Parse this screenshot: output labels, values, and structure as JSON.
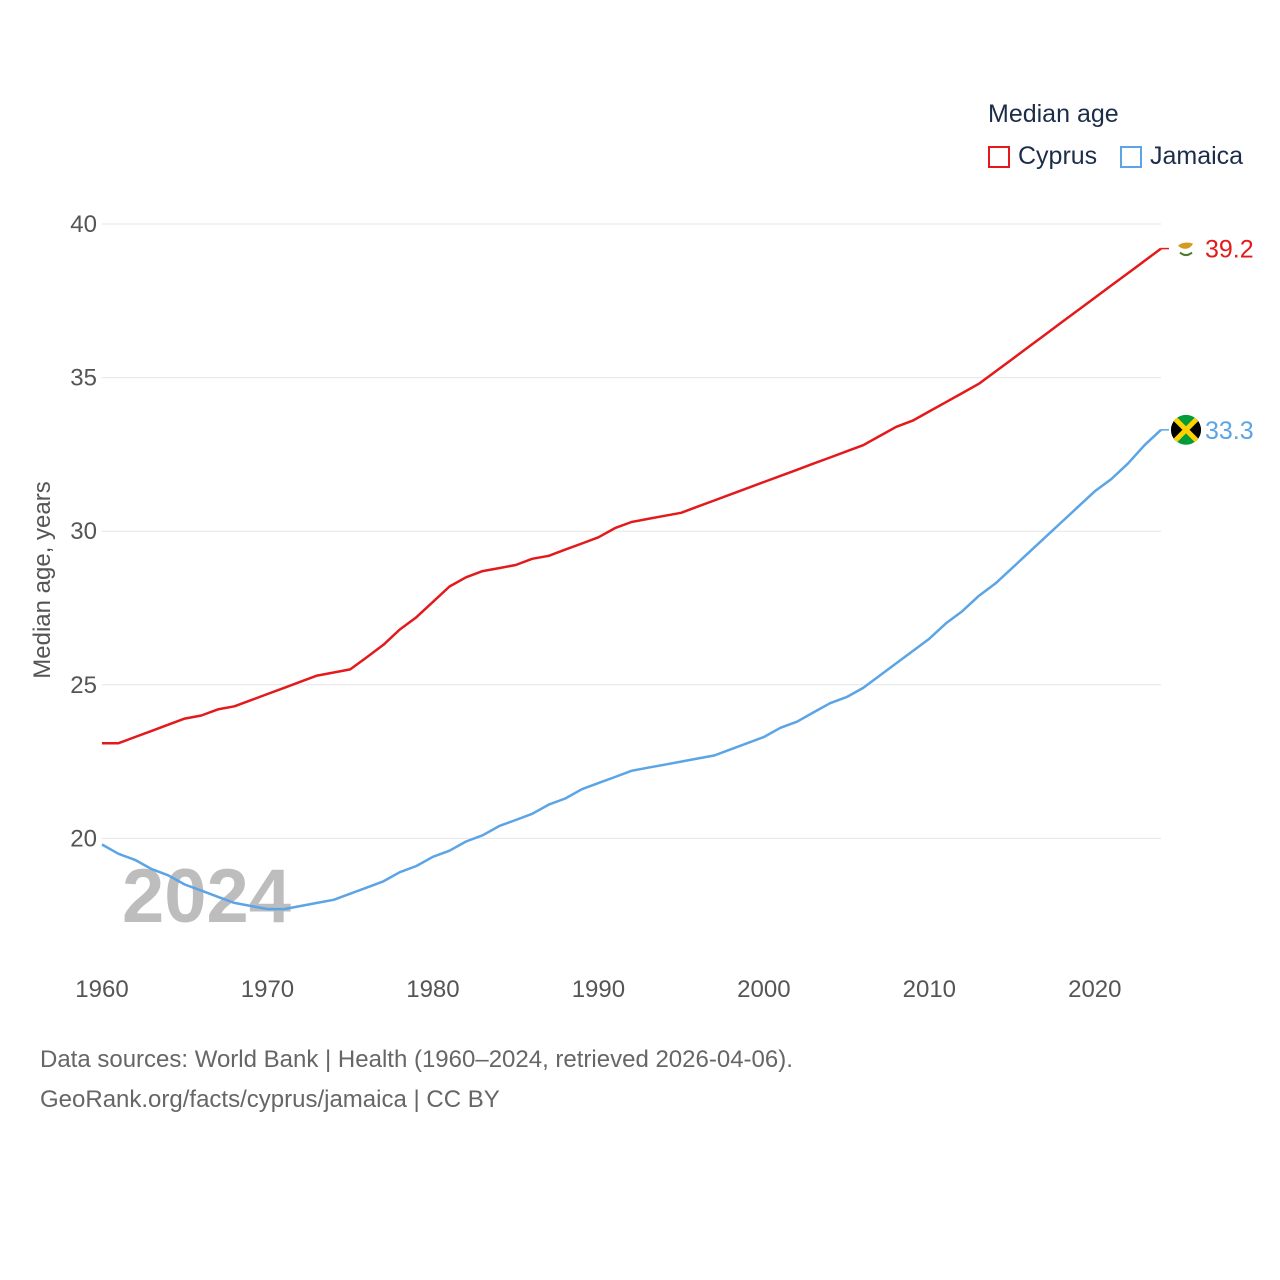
{
  "chart_data": {
    "type": "line",
    "title": "",
    "xlabel": "",
    "ylabel": "Median age, years",
    "xlim": [
      1960,
      2024
    ],
    "ylim": [
      16.1,
      40.7
    ],
    "x_ticks": [
      1960,
      1970,
      1980,
      1990,
      2000,
      2010,
      2020
    ],
    "y_ticks": [
      20,
      25,
      30,
      35,
      40
    ],
    "grid": true,
    "legend_title": "Median age",
    "legend_position": "top-right",
    "watermark_year": "2024",
    "x": [
      1960,
      1961,
      1962,
      1963,
      1964,
      1965,
      1966,
      1967,
      1968,
      1969,
      1970,
      1971,
      1972,
      1973,
      1974,
      1975,
      1976,
      1977,
      1978,
      1979,
      1980,
      1981,
      1982,
      1983,
      1984,
      1985,
      1986,
      1987,
      1988,
      1989,
      1990,
      1991,
      1992,
      1993,
      1994,
      1995,
      1996,
      1997,
      1998,
      1999,
      2000,
      2001,
      2002,
      2003,
      2004,
      2005,
      2006,
      2007,
      2008,
      2009,
      2010,
      2011,
      2012,
      2013,
      2014,
      2015,
      2016,
      2017,
      2018,
      2019,
      2020,
      2021,
      2022,
      2023,
      2024
    ],
    "series": [
      {
        "name": "Cyprus",
        "color": "#e31a1c",
        "end_label": "39.2",
        "values": [
          23.1,
          23.1,
          23.3,
          23.5,
          23.7,
          23.9,
          24.0,
          24.2,
          24.3,
          24.5,
          24.7,
          24.9,
          25.1,
          25.3,
          25.4,
          25.5,
          25.9,
          26.3,
          26.8,
          27.2,
          27.7,
          28.2,
          28.5,
          28.7,
          28.8,
          28.9,
          29.1,
          29.2,
          29.4,
          29.6,
          29.8,
          30.1,
          30.3,
          30.4,
          30.5,
          30.6,
          30.8,
          31.0,
          31.2,
          31.4,
          31.6,
          31.8,
          32.0,
          32.2,
          32.4,
          32.6,
          32.8,
          33.1,
          33.4,
          33.6,
          33.9,
          34.2,
          34.5,
          34.8,
          35.2,
          35.6,
          36.0,
          36.4,
          36.8,
          37.2,
          37.6,
          38.0,
          38.4,
          38.8,
          39.2
        ]
      },
      {
        "name": "Jamaica",
        "color": "#5ba4e6",
        "end_label": "33.3",
        "values": [
          19.8,
          19.5,
          19.3,
          19.0,
          18.8,
          18.5,
          18.3,
          18.1,
          17.9,
          17.8,
          17.7,
          17.7,
          17.8,
          17.9,
          18.0,
          18.2,
          18.4,
          18.6,
          18.9,
          19.1,
          19.4,
          19.6,
          19.9,
          20.1,
          20.4,
          20.6,
          20.8,
          21.1,
          21.3,
          21.6,
          21.8,
          22.0,
          22.2,
          22.3,
          22.4,
          22.5,
          22.6,
          22.7,
          22.9,
          23.1,
          23.3,
          23.6,
          23.8,
          24.1,
          24.4,
          24.6,
          24.9,
          25.3,
          25.7,
          26.1,
          26.5,
          27.0,
          27.4,
          27.9,
          28.3,
          28.8,
          29.3,
          29.8,
          30.3,
          30.8,
          31.3,
          31.7,
          32.2,
          32.8,
          33.3
        ]
      }
    ]
  },
  "legend": {
    "title": "Median age",
    "items": [
      "Cyprus",
      "Jamaica"
    ]
  },
  "flags": [
    "cyprus-flag-icon",
    "jamaica-flag-icon"
  ],
  "footer": {
    "line1": "Data sources: World Bank | Health (1960–2024, retrieved 2026-04-06).",
    "line2": "GeoRank.org/facts/cyprus/jamaica | CC BY"
  }
}
